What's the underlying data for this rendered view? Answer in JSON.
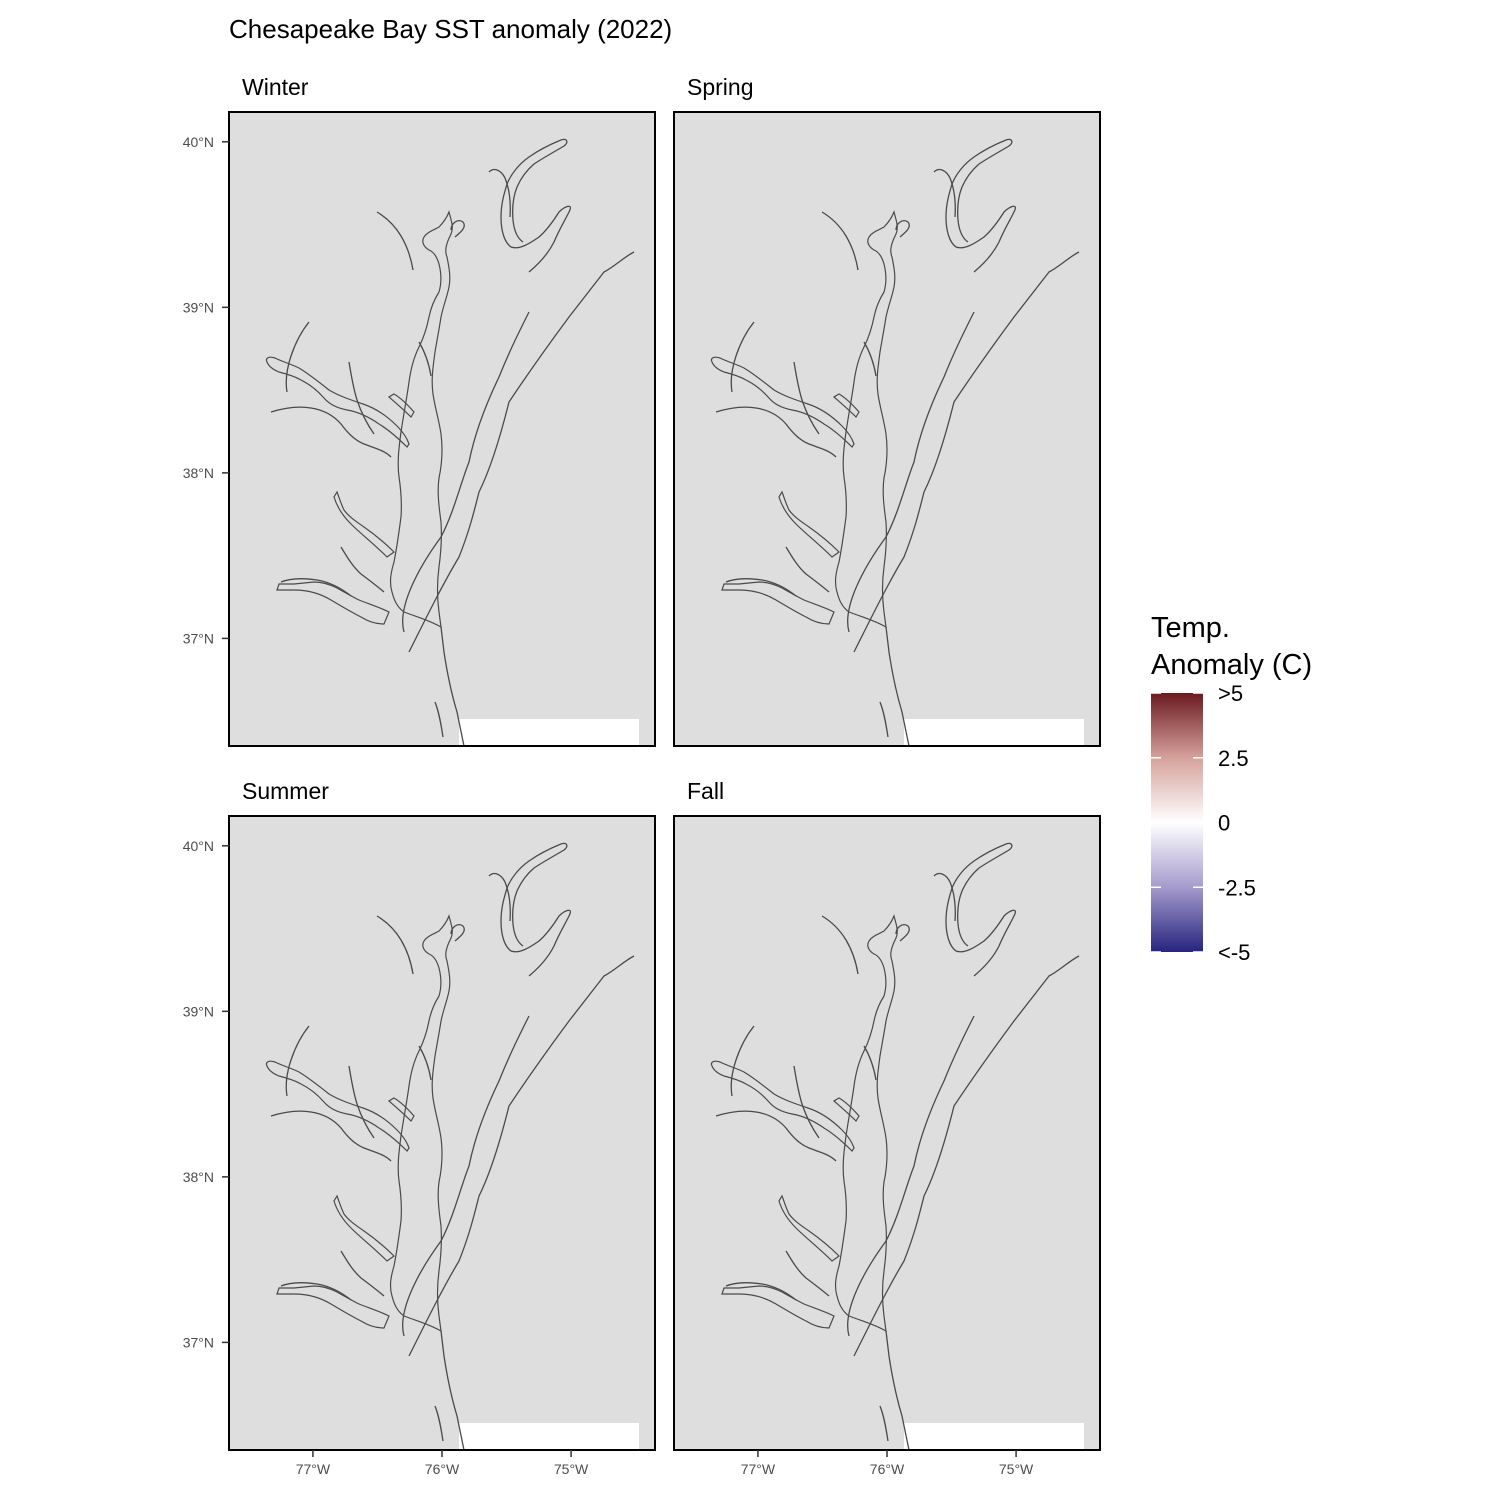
{
  "title": "Chesapeake Bay SST anomaly (2022)",
  "panels": [
    {
      "name": "winter",
      "label": "Winter",
      "pattern": "warm_uniform"
    },
    {
      "name": "spring",
      "label": "Spring",
      "pattern": "cool_bay_warm_ocean"
    },
    {
      "name": "summer",
      "label": "Summer",
      "pattern": "cool_shelf"
    },
    {
      "name": "fall",
      "label": "Fall",
      "pattern": "mixed_warm"
    }
  ],
  "axes": {
    "lat_ticks": [
      "40°N",
      "39°N",
      "38°N",
      "37°N"
    ],
    "lon_ticks": [
      "77°W",
      "76°W",
      "75°W"
    ],
    "lat_values": [
      40,
      39,
      38,
      37
    ],
    "lon_values": [
      -77,
      -76,
      -75
    ],
    "lat_range": [
      36.35,
      40.18
    ],
    "lon_range": [
      -77.65,
      -74.35
    ]
  },
  "legend": {
    "title_line1": "Temp.",
    "title_line2": "Anomaly (C)",
    "labels": [
      ">5",
      "2.5",
      "0",
      "-2.5",
      "<-5"
    ],
    "values": [
      5,
      2.5,
      0,
      -2.5,
      -5
    ],
    "colors": {
      "high": "#67181d",
      "mid": "#ffffff",
      "low": "#23237f"
    }
  },
  "colors": {
    "land": "#dedede",
    "coast": "#4a4a4a",
    "panel_border": "#000000"
  }
}
